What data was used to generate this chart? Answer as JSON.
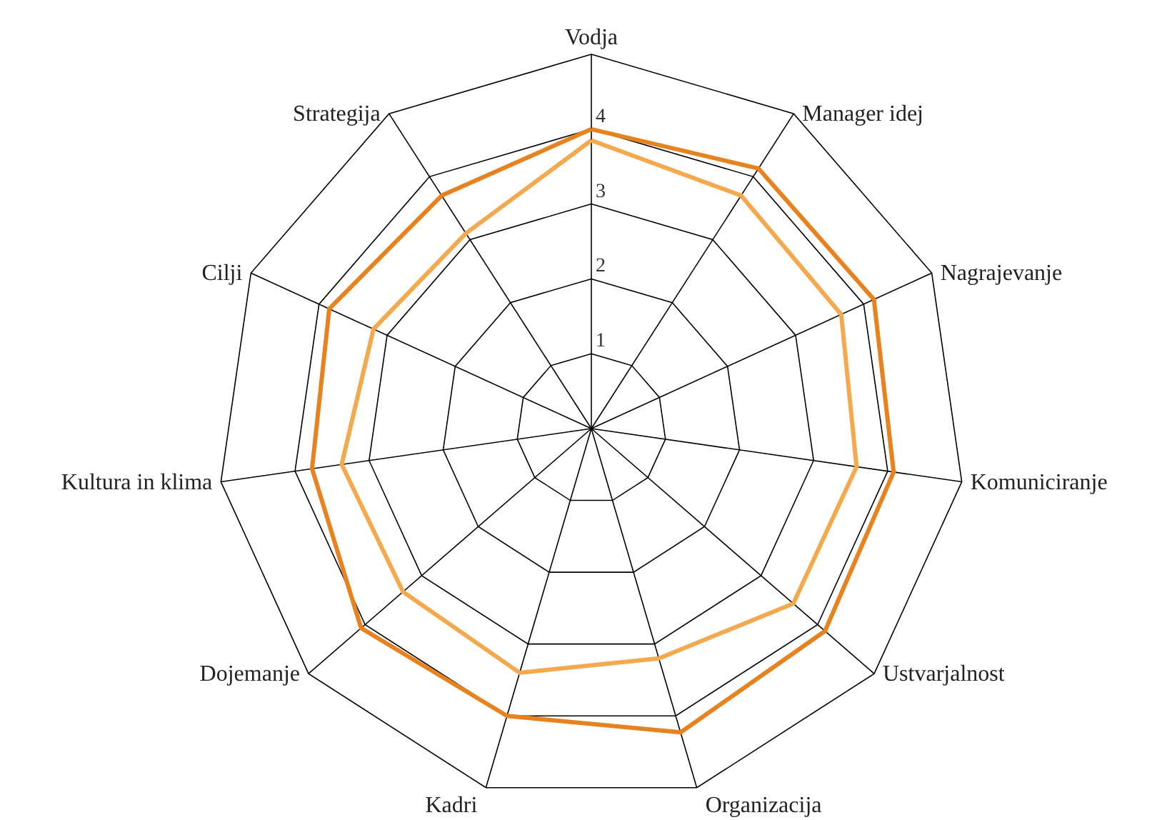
{
  "chart_data": {
    "type": "radar",
    "categories": [
      "Vodja",
      "Manager idej",
      "Nagrajevanje",
      "Komuniciranje",
      "Ustvarjalnost",
      "Organizacija",
      "Kadri",
      "Dojemanje",
      "Kultura in klima",
      "Cilji",
      "Strategija"
    ],
    "series": [
      {
        "color": "#e8821e",
        "values": [
          4.0,
          4.13,
          4.15,
          4.08,
          4.13,
          4.23,
          4.0,
          4.07,
          3.77,
          3.85,
          3.7
        ]
      },
      {
        "color": "#f4a94e",
        "values": [
          3.85,
          3.7,
          3.67,
          3.58,
          3.57,
          3.2,
          3.4,
          3.33,
          3.37,
          3.2,
          3.1
        ]
      }
    ],
    "ylim": [
      0,
      5
    ],
    "yticks": [
      1,
      2,
      3,
      4
    ],
    "grid": true
  }
}
